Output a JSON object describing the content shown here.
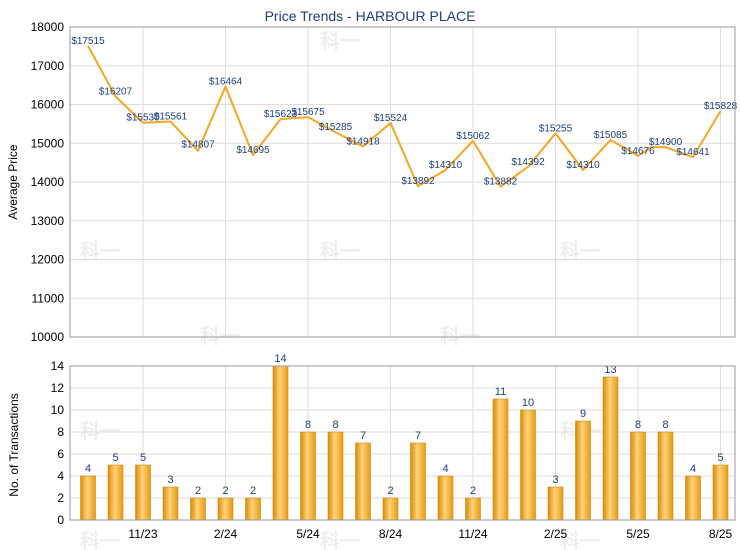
{
  "chart_data": [
    {
      "type": "line",
      "title": "Price Trends - HARBOUR PLACE",
      "ylabel": "Average Price",
      "ylim": [
        10000,
        18000
      ],
      "yticks": [
        10000,
        11000,
        12000,
        13000,
        14000,
        15000,
        16000,
        17000,
        18000
      ],
      "values": [
        17515,
        16207,
        15530,
        15561,
        14807,
        16464,
        14695,
        15623,
        15675,
        15285,
        14918,
        15524,
        13892,
        14310,
        15062,
        13882,
        14392,
        15255,
        14310,
        15085,
        14676,
        14900,
        14641,
        15828
      ],
      "value_labels": [
        "$17515",
        "$16207",
        "$15530",
        "$15561",
        "$14807",
        "$16464",
        "$14695",
        "$15623",
        "$15675",
        "$15285",
        "$14918",
        "$15524",
        "$13892",
        "$14310",
        "$15062",
        "$13882",
        "$14392",
        "$15255",
        "$14310",
        "$15085",
        "$14676",
        "$14900",
        "$14641",
        "$15828"
      ],
      "unlabeled_points": [
        {
          "after_index": 20,
          "value": 14900
        }
      ],
      "line_color": "#f5a623",
      "grid": true
    },
    {
      "type": "bar",
      "ylabel": "No. of Transactions",
      "ylim": [
        0,
        14
      ],
      "yticks": [
        0,
        2,
        4,
        6,
        8,
        10,
        12,
        14
      ],
      "values": [
        4,
        5,
        5,
        3,
        2,
        2,
        2,
        14,
        8,
        8,
        7,
        2,
        7,
        4,
        2,
        11,
        10,
        3,
        9,
        13,
        8,
        8,
        4,
        5
      ],
      "xtick_labels": [
        "11/23",
        "2/24",
        "5/24",
        "8/24",
        "11/24",
        "2/25",
        "5/25",
        "8/25"
      ],
      "bar_color": "#f5a623",
      "grid": true
    }
  ],
  "watermark": "科一"
}
